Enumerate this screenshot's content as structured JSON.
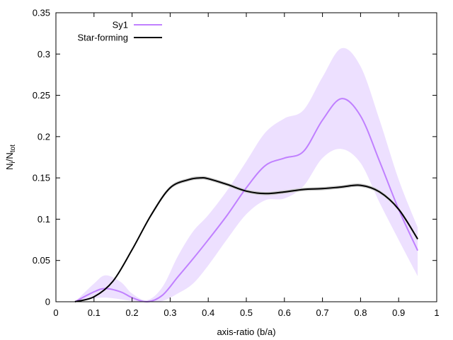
{
  "chart_data": {
    "type": "line",
    "xlabel": "axis-ratio (b/a)",
    "ylabel": {
      "base": "N",
      "sub1": "i",
      "mid": "/N",
      "sub2": "tot"
    },
    "xlim": [
      0,
      1
    ],
    "ylim": [
      0,
      0.35
    ],
    "x_ticks": [
      0,
      0.1,
      0.2,
      0.3,
      0.4,
      0.5,
      0.6,
      0.7,
      0.8,
      0.9,
      1
    ],
    "x_tick_labels": [
      "0",
      "0.1",
      "0.2",
      "0.3",
      "0.4",
      "0.5",
      "0.6",
      "0.7",
      "0.8",
      "0.9",
      "1"
    ],
    "y_ticks": [
      0,
      0.05,
      0.1,
      0.15,
      0.2,
      0.25,
      0.3,
      0.35
    ],
    "y_tick_labels": [
      "0",
      "0.05",
      "0.1",
      "0.15",
      "0.2",
      "0.25",
      "0.3",
      "0.35"
    ],
    "grid": false,
    "legend_position": "top-left",
    "series": [
      {
        "name": "Sy1",
        "color": "#c080ff",
        "band_color": "#ede0ff",
        "x": [
          0.05,
          0.1,
          0.13,
          0.17,
          0.2,
          0.24,
          0.28,
          0.32,
          0.36,
          0.4,
          0.45,
          0.5,
          0.55,
          0.6,
          0.65,
          0.7,
          0.75,
          0.8,
          0.85,
          0.9,
          0.95
        ],
        "y": [
          0.0,
          0.012,
          0.016,
          0.012,
          0.005,
          0.0,
          0.008,
          0.03,
          0.052,
          0.075,
          0.105,
          0.138,
          0.165,
          0.174,
          0.182,
          0.22,
          0.246,
          0.225,
          0.17,
          0.112,
          0.062
        ],
        "lower": [
          0.0,
          0.004,
          0.005,
          0.003,
          0.001,
          0.0,
          0.001,
          0.01,
          0.022,
          0.044,
          0.076,
          0.106,
          0.123,
          0.125,
          0.14,
          0.174,
          0.185,
          0.168,
          0.12,
          0.075,
          0.031
        ],
        "upper": [
          0.0,
          0.022,
          0.032,
          0.024,
          0.01,
          0.002,
          0.018,
          0.055,
          0.085,
          0.105,
          0.135,
          0.17,
          0.205,
          0.222,
          0.232,
          0.272,
          0.307,
          0.285,
          0.22,
          0.148,
          0.09
        ]
      },
      {
        "name": "Star-forming",
        "color": "#000000",
        "band_color": "#c8c8c8",
        "x": [
          0.05,
          0.1,
          0.15,
          0.2,
          0.25,
          0.3,
          0.35,
          0.38,
          0.4,
          0.45,
          0.5,
          0.55,
          0.6,
          0.65,
          0.7,
          0.75,
          0.8,
          0.85,
          0.9,
          0.95
        ],
        "y": [
          0.0,
          0.006,
          0.025,
          0.063,
          0.105,
          0.138,
          0.148,
          0.15,
          0.149,
          0.142,
          0.134,
          0.131,
          0.133,
          0.136,
          0.137,
          0.139,
          0.141,
          0.133,
          0.112,
          0.076
        ],
        "lower": [
          0.0,
          0.005,
          0.024,
          0.062,
          0.103,
          0.136,
          0.146,
          0.148,
          0.147,
          0.14,
          0.132,
          0.129,
          0.131,
          0.134,
          0.135,
          0.137,
          0.139,
          0.131,
          0.11,
          0.074
        ],
        "upper": [
          0.0,
          0.007,
          0.026,
          0.064,
          0.107,
          0.14,
          0.15,
          0.152,
          0.151,
          0.144,
          0.136,
          0.133,
          0.135,
          0.138,
          0.139,
          0.141,
          0.143,
          0.135,
          0.114,
          0.078
        ]
      }
    ]
  }
}
